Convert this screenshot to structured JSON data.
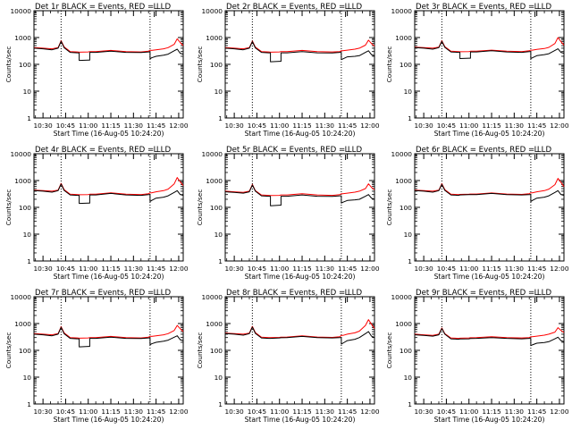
{
  "chart_data": [
    {
      "type": "line",
      "title": "Det 1r BLACK = Events, RED = LLD",
      "xlabel": "Start Time (16-Aug-05 10:24:20)",
      "ylabel": "Counts/sec",
      "yscale": "log",
      "ylim": [
        1,
        10000
      ],
      "xlim": [
        "10:24",
        "12:03"
      ],
      "x_ticks": [
        "10:30",
        "10:45",
        "11:00",
        "11:15",
        "11:30",
        "11:45",
        "12:00"
      ],
      "y_ticks": [
        "1",
        "10",
        "100",
        "1000",
        "10000"
      ],
      "grid": false,
      "markers": [
        "10:42",
        "11:41"
      ],
      "annotation": "L",
      "x": [
        "10:24",
        "10:30",
        "10:36",
        "10:40",
        "10:42",
        "10:44",
        "10:48",
        "10:53",
        "10:54",
        "11:00",
        "11:01",
        "11:05",
        "11:15",
        "11:25",
        "11:35",
        "11:40",
        "11:41",
        "11:42",
        "11:45",
        "11:50",
        "11:53",
        "11:57",
        "11:59",
        "12:01",
        "12:03"
      ],
      "series": [
        {
          "name": "BLACK = Events",
          "color": "#000000",
          "values": [
            400,
            380,
            350,
            400,
            720,
            420,
            280,
            270,
            140,
            145,
            280,
            280,
            310,
            280,
            275,
            290,
            160,
            175,
            200,
            220,
            240,
            320,
            370,
            260,
            240
          ]
        },
        {
          "name": "RED = LLD",
          "color": "#ff0000",
          "values": [
            420,
            400,
            380,
            420,
            760,
            450,
            300,
            290,
            285,
            290,
            300,
            300,
            330,
            300,
            290,
            310,
            340,
            330,
            350,
            380,
            420,
            560,
            900,
            650,
            500
          ]
        }
      ]
    },
    {
      "type": "line",
      "title": "Det 2r BLACK = Events, RED = LLD",
      "xlabel": "Start Time (16-Aug-05 10:24:20)",
      "ylabel": "Counts/sec",
      "yscale": "log",
      "ylim": [
        1,
        10000
      ],
      "xlim": [
        "10:24",
        "12:03"
      ],
      "x_ticks": [
        "10:30",
        "10:45",
        "11:00",
        "11:15",
        "11:30",
        "11:45",
        "12:00"
      ],
      "y_ticks": [
        "1",
        "10",
        "100",
        "1000",
        "10000"
      ],
      "grid": false,
      "markers": [
        "10:42",
        "11:41"
      ],
      "annotation": "L",
      "x": [
        "10:24",
        "10:30",
        "10:36",
        "10:40",
        "10:42",
        "10:44",
        "10:48",
        "10:53",
        "10:54",
        "11:00",
        "11:01",
        "11:05",
        "11:15",
        "11:25",
        "11:35",
        "11:40",
        "11:41",
        "11:42",
        "11:45",
        "11:50",
        "11:53",
        "11:57",
        "11:59",
        "12:01",
        "12:03"
      ],
      "series": [
        {
          "name": "BLACK = Events",
          "color": "#000000",
          "values": [
            400,
            380,
            350,
            400,
            700,
            410,
            280,
            270,
            125,
            130,
            270,
            270,
            300,
            270,
            265,
            280,
            150,
            160,
            190,
            200,
            210,
            280,
            320,
            230,
            210
          ]
        },
        {
          "name": "RED = LLD",
          "color": "#ff0000",
          "values": [
            420,
            400,
            380,
            420,
            740,
            440,
            300,
            290,
            285,
            290,
            300,
            300,
            330,
            300,
            290,
            300,
            320,
            320,
            340,
            370,
            400,
            520,
            800,
            600,
            480
          ]
        }
      ]
    },
    {
      "type": "line",
      "title": "Det 3r BLACK = Events, RED = LLD",
      "xlabel": "Start Time (16-Aug-05 10:24:20)",
      "ylabel": "Counts/sec",
      "yscale": "log",
      "ylim": [
        1,
        10000
      ],
      "xlim": [
        "10:24",
        "12:03"
      ],
      "x_ticks": [
        "10:30",
        "10:45",
        "11:00",
        "11:15",
        "11:30",
        "11:45",
        "12:00"
      ],
      "y_ticks": [
        "1",
        "10",
        "100",
        "1000",
        "10000"
      ],
      "grid": false,
      "markers": [
        "10:42",
        "11:41"
      ],
      "annotation": "L",
      "x": [
        "10:24",
        "10:30",
        "10:36",
        "10:40",
        "10:42",
        "10:44",
        "10:48",
        "10:53",
        "10:54",
        "11:00",
        "11:01",
        "11:05",
        "11:15",
        "11:25",
        "11:35",
        "11:40",
        "11:41",
        "11:42",
        "11:45",
        "11:50",
        "11:53",
        "11:57",
        "11:59",
        "12:01",
        "12:03"
      ],
      "series": [
        {
          "name": "BLACK = Events",
          "color": "#000000",
          "values": [
            420,
            400,
            370,
            420,
            720,
            430,
            290,
            280,
            165,
            170,
            290,
            290,
            320,
            290,
            280,
            300,
            165,
            175,
            210,
            230,
            250,
            330,
            380,
            280,
            260
          ]
        },
        {
          "name": "RED = LLD",
          "color": "#ff0000",
          "values": [
            440,
            420,
            400,
            440,
            760,
            460,
            310,
            300,
            295,
            300,
            310,
            310,
            340,
            310,
            300,
            320,
            340,
            340,
            360,
            390,
            430,
            600,
            1000,
            700,
            520
          ]
        }
      ]
    },
    {
      "type": "line",
      "title": "Det 4r BLACK = Events, RED = LLD",
      "xlabel": "Start Time (16-Aug-05 10:24:20)",
      "ylabel": "Counts/sec",
      "yscale": "log",
      "ylim": [
        1,
        10000
      ],
      "xlim": [
        "10:24",
        "12:03"
      ],
      "x_ticks": [
        "10:30",
        "10:45",
        "11:00",
        "11:15",
        "11:30",
        "11:45",
        "12:00"
      ],
      "y_ticks": [
        "1",
        "10",
        "100",
        "1000",
        "10000"
      ],
      "grid": false,
      "markers": [
        "10:42",
        "11:41"
      ],
      "annotation": "L",
      "x": [
        "10:24",
        "10:30",
        "10:36",
        "10:40",
        "10:42",
        "10:44",
        "10:48",
        "10:53",
        "10:54",
        "11:00",
        "11:01",
        "11:05",
        "11:15",
        "11:25",
        "11:35",
        "11:40",
        "11:41",
        "11:42",
        "11:45",
        "11:50",
        "11:53",
        "11:57",
        "11:59",
        "12:01",
        "12:03"
      ],
      "series": [
        {
          "name": "BLACK = Events",
          "color": "#000000",
          "values": [
            420,
            400,
            370,
            420,
            740,
            430,
            290,
            280,
            140,
            145,
            290,
            290,
            330,
            290,
            280,
            300,
            165,
            180,
            220,
            240,
            270,
            360,
            420,
            300,
            280
          ]
        },
        {
          "name": "RED = LLD",
          "color": "#ff0000",
          "values": [
            440,
            420,
            400,
            440,
            780,
            460,
            310,
            300,
            295,
            300,
            310,
            310,
            350,
            310,
            300,
            320,
            350,
            350,
            380,
            420,
            480,
            750,
            1300,
            900,
            650
          ]
        }
      ]
    },
    {
      "type": "line",
      "title": "Det 5r BLACK = Events, RED = LLD",
      "xlabel": "Start Time (16-Aug-05 10:24:20)",
      "ylabel": "Counts/sec",
      "yscale": "log",
      "ylim": [
        1,
        10000
      ],
      "xlim": [
        "10:24",
        "12:03"
      ],
      "x_ticks": [
        "10:30",
        "10:45",
        "11:00",
        "11:15",
        "11:30",
        "11:45",
        "12:00"
      ],
      "y_ticks": [
        "1",
        "10",
        "100",
        "1000",
        "10000"
      ],
      "grid": false,
      "markers": [
        "10:42",
        "11:41"
      ],
      "annotation": "L",
      "x": [
        "10:24",
        "10:30",
        "10:36",
        "10:40",
        "10:42",
        "10:44",
        "10:48",
        "10:53",
        "10:54",
        "11:00",
        "11:01",
        "11:05",
        "11:15",
        "11:25",
        "11:35",
        "11:40",
        "11:41",
        "11:42",
        "11:45",
        "11:50",
        "11:53",
        "11:57",
        "11:59",
        "12:01",
        "12:03"
      ],
      "series": [
        {
          "name": "BLACK = Events",
          "color": "#000000",
          "values": [
            380,
            360,
            340,
            380,
            680,
            400,
            270,
            260,
            115,
            120,
            260,
            260,
            290,
            260,
            255,
            270,
            145,
            155,
            180,
            190,
            200,
            260,
            300,
            220,
            200
          ]
        },
        {
          "name": "RED = LLD",
          "color": "#ff0000",
          "values": [
            400,
            380,
            360,
            400,
            720,
            420,
            290,
            280,
            275,
            280,
            290,
            290,
            320,
            290,
            280,
            300,
            320,
            320,
            340,
            370,
            400,
            500,
            750,
            560,
            450
          ]
        }
      ]
    },
    {
      "type": "line",
      "title": "Det 6r BLACK = Events, RED = LLD",
      "xlabel": "Start Time (16-Aug-05 10:24:20)",
      "ylabel": "Counts/sec",
      "yscale": "log",
      "ylim": [
        1,
        10000
      ],
      "xlim": [
        "10:24",
        "12:03"
      ],
      "x_ticks": [
        "10:30",
        "10:45",
        "11:00",
        "11:15",
        "11:30",
        "11:45",
        "12:00"
      ],
      "y_ticks": [
        "1",
        "10",
        "100",
        "1000",
        "10000"
      ],
      "grid": false,
      "markers": [
        "10:42",
        "11:41"
      ],
      "annotation": "L",
      "x": [
        "10:24",
        "10:30",
        "10:36",
        "10:40",
        "10:42",
        "10:44",
        "10:48",
        "10:53",
        "10:54",
        "11:00",
        "11:01",
        "11:05",
        "11:15",
        "11:25",
        "11:35",
        "11:40",
        "11:41",
        "11:42",
        "11:45",
        "11:50",
        "11:53",
        "11:57",
        "11:59",
        "12:01",
        "12:03"
      ],
      "series": [
        {
          "name": "BLACK = Events",
          "color": "#000000",
          "values": [
            420,
            400,
            370,
            420,
            720,
            430,
            290,
            280,
            290,
            300,
            300,
            300,
            330,
            300,
            290,
            300,
            165,
            180,
            220,
            240,
            270,
            360,
            420,
            300,
            280
          ]
        },
        {
          "name": "RED = LLD",
          "color": "#ff0000",
          "values": [
            440,
            420,
            400,
            440,
            760,
            460,
            310,
            300,
            305,
            310,
            315,
            315,
            345,
            315,
            305,
            320,
            350,
            350,
            380,
            420,
            480,
            700,
            1200,
            850,
            600
          ]
        }
      ]
    },
    {
      "type": "line",
      "title": "Det 7r BLACK = Events, RED = LLD",
      "xlabel": "Start Time (16-Aug-05 10:24:20)",
      "ylabel": "Counts/sec",
      "yscale": "log",
      "ylim": [
        1,
        10000
      ],
      "xlim": [
        "10:24",
        "12:03"
      ],
      "x_ticks": [
        "10:30",
        "10:45",
        "11:00",
        "11:15",
        "11:30",
        "11:45",
        "12:00"
      ],
      "y_ticks": [
        "1",
        "10",
        "100",
        "1000",
        "10000"
      ],
      "grid": false,
      "markers": [
        "10:42",
        "11:41"
      ],
      "annotation": "L",
      "x": [
        "10:24",
        "10:30",
        "10:36",
        "10:40",
        "10:42",
        "10:44",
        "10:48",
        "10:53",
        "10:54",
        "11:00",
        "11:01",
        "11:05",
        "11:15",
        "11:25",
        "11:35",
        "11:40",
        "11:41",
        "11:42",
        "11:45",
        "11:50",
        "11:53",
        "11:57",
        "11:59",
        "12:01",
        "12:03"
      ],
      "series": [
        {
          "name": "BLACK = Events",
          "color": "#000000",
          "values": [
            400,
            380,
            350,
            400,
            720,
            420,
            280,
            270,
            135,
            140,
            280,
            280,
            310,
            280,
            275,
            290,
            160,
            175,
            200,
            220,
            240,
            310,
            350,
            250,
            230
          ]
        },
        {
          "name": "RED = LLD",
          "color": "#ff0000",
          "values": [
            420,
            400,
            380,
            420,
            760,
            450,
            300,
            290,
            285,
            290,
            300,
            300,
            330,
            300,
            290,
            310,
            340,
            330,
            350,
            380,
            420,
            550,
            850,
            640,
            500
          ]
        }
      ]
    },
    {
      "type": "line",
      "title": "Det 8r BLACK = Events, RED = LLD",
      "xlabel": "Start Time (16-Aug-05 10:24:20)",
      "ylabel": "Counts/sec",
      "yscale": "log",
      "ylim": [
        1,
        10000
      ],
      "xlim": [
        "10:24",
        "12:03"
      ],
      "x_ticks": [
        "10:30",
        "10:45",
        "11:00",
        "11:15",
        "11:30",
        "11:45",
        "12:00"
      ],
      "y_ticks": [
        "1",
        "10",
        "100",
        "1000",
        "10000"
      ],
      "grid": false,
      "markers": [
        "10:42",
        "11:41"
      ],
      "annotation": "L",
      "x": [
        "10:24",
        "10:30",
        "10:36",
        "10:40",
        "10:42",
        "10:44",
        "10:48",
        "10:53",
        "10:54",
        "11:00",
        "11:01",
        "11:05",
        "11:15",
        "11:25",
        "11:35",
        "11:40",
        "11:41",
        "11:42",
        "11:45",
        "11:50",
        "11:53",
        "11:57",
        "11:59",
        "12:01",
        "12:03"
      ],
      "series": [
        {
          "name": "BLACK = Events",
          "color": "#000000",
          "values": [
            420,
            400,
            370,
            420,
            740,
            430,
            290,
            280,
            280,
            290,
            295,
            300,
            330,
            300,
            290,
            300,
            170,
            185,
            230,
            260,
            300,
            420,
            500,
            340,
            300
          ]
        },
        {
          "name": "RED = LLD",
          "color": "#ff0000",
          "values": [
            440,
            420,
            400,
            440,
            780,
            460,
            310,
            300,
            300,
            305,
            310,
            315,
            350,
            315,
            305,
            320,
            360,
            360,
            400,
            450,
            520,
            850,
            1400,
            950,
            650
          ]
        }
      ]
    },
    {
      "type": "line",
      "title": "Det 9r BLACK = Events, RED = LLD",
      "xlabel": "Start Time (16-Aug-05 10:24:20)",
      "ylabel": "Counts/sec",
      "yscale": "log",
      "ylim": [
        1,
        10000
      ],
      "xlim": [
        "10:24",
        "12:03"
      ],
      "x_ticks": [
        "10:30",
        "10:45",
        "11:00",
        "11:15",
        "11:30",
        "11:45",
        "12:00"
      ],
      "y_ticks": [
        "1",
        "10",
        "100",
        "1000",
        "10000"
      ],
      "grid": false,
      "markers": [
        "10:42",
        "11:41"
      ],
      "annotation": "L",
      "x": [
        "10:24",
        "10:30",
        "10:36",
        "10:40",
        "10:42",
        "10:44",
        "10:48",
        "10:53",
        "10:54",
        "11:00",
        "11:01",
        "11:05",
        "11:15",
        "11:25",
        "11:35",
        "11:40",
        "11:41",
        "11:42",
        "11:45",
        "11:50",
        "11:53",
        "11:57",
        "11:59",
        "12:01",
        "12:03"
      ],
      "series": [
        {
          "name": "BLACK = Events",
          "color": "#000000",
          "values": [
            380,
            360,
            340,
            380,
            650,
            400,
            270,
            260,
            265,
            270,
            275,
            280,
            300,
            280,
            270,
            280,
            150,
            160,
            185,
            195,
            210,
            270,
            310,
            230,
            210
          ]
        },
        {
          "name": "RED = LLD",
          "color": "#ff0000",
          "values": [
            400,
            380,
            360,
            400,
            680,
            420,
            290,
            280,
            285,
            290,
            295,
            300,
            320,
            300,
            290,
            300,
            320,
            320,
            340,
            370,
            400,
            480,
            700,
            560,
            460
          ]
        }
      ]
    }
  ]
}
